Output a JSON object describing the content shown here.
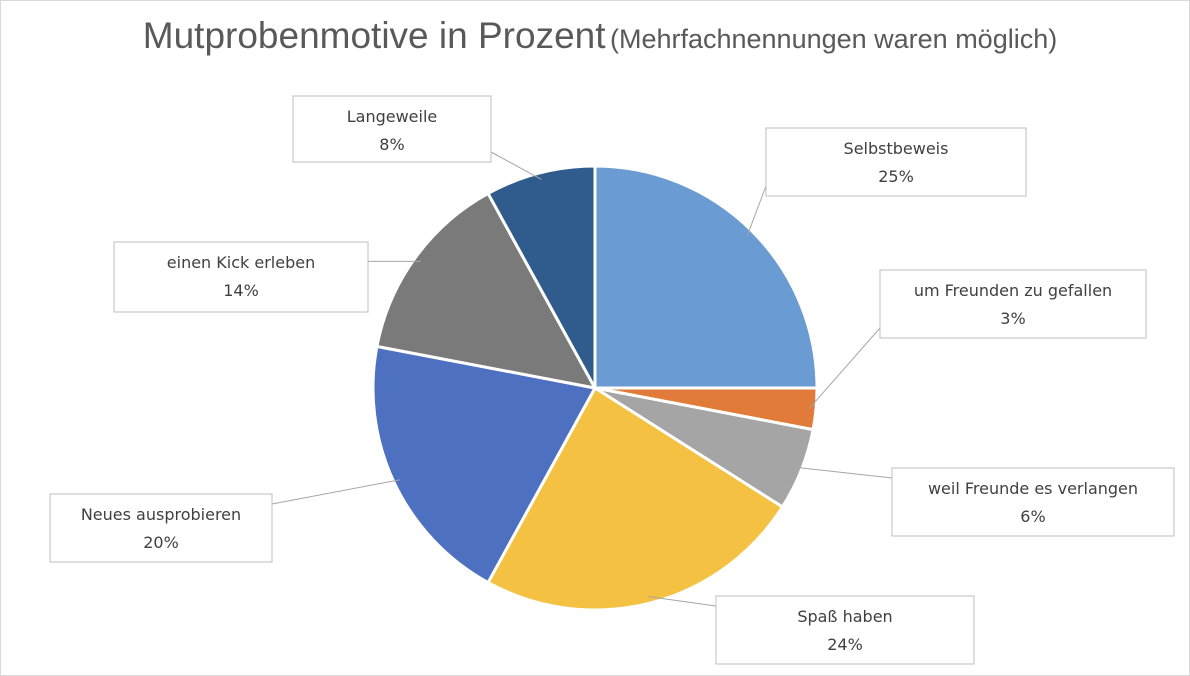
{
  "chart_data": {
    "type": "pie",
    "title": "Mutprobenmotive in Prozent",
    "subtitle": "(Mehrfachnennungen waren möglich)",
    "slices": [
      {
        "label": "Selbstbeweis",
        "value": 25,
        "value_label": "25%",
        "color": "#6a9bd2"
      },
      {
        "label": "um Freunden zu gefallen",
        "value": 3,
        "value_label": "3%",
        "color": "#e07b39"
      },
      {
        "label": "weil Freunde es verlangen",
        "value": 6,
        "value_label": "6%",
        "color": "#a5a5a5"
      },
      {
        "label": "Spaß haben",
        "value": 24,
        "value_label": "24%",
        "color": "#f4c142"
      },
      {
        "label": "Neues ausprobieren",
        "value": 20,
        "value_label": "20%",
        "color": "#4e70c0"
      },
      {
        "label": "einen Kick erleben",
        "value": 14,
        "value_label": "14%",
        "color": "#7a7a7a"
      },
      {
        "label": "Langeweile",
        "value": 8,
        "value_label": "8%",
        "color": "#2f5c8c"
      }
    ],
    "start_angle": "12 o'clock",
    "direction": "clockwise",
    "data_labels": "callouts"
  }
}
